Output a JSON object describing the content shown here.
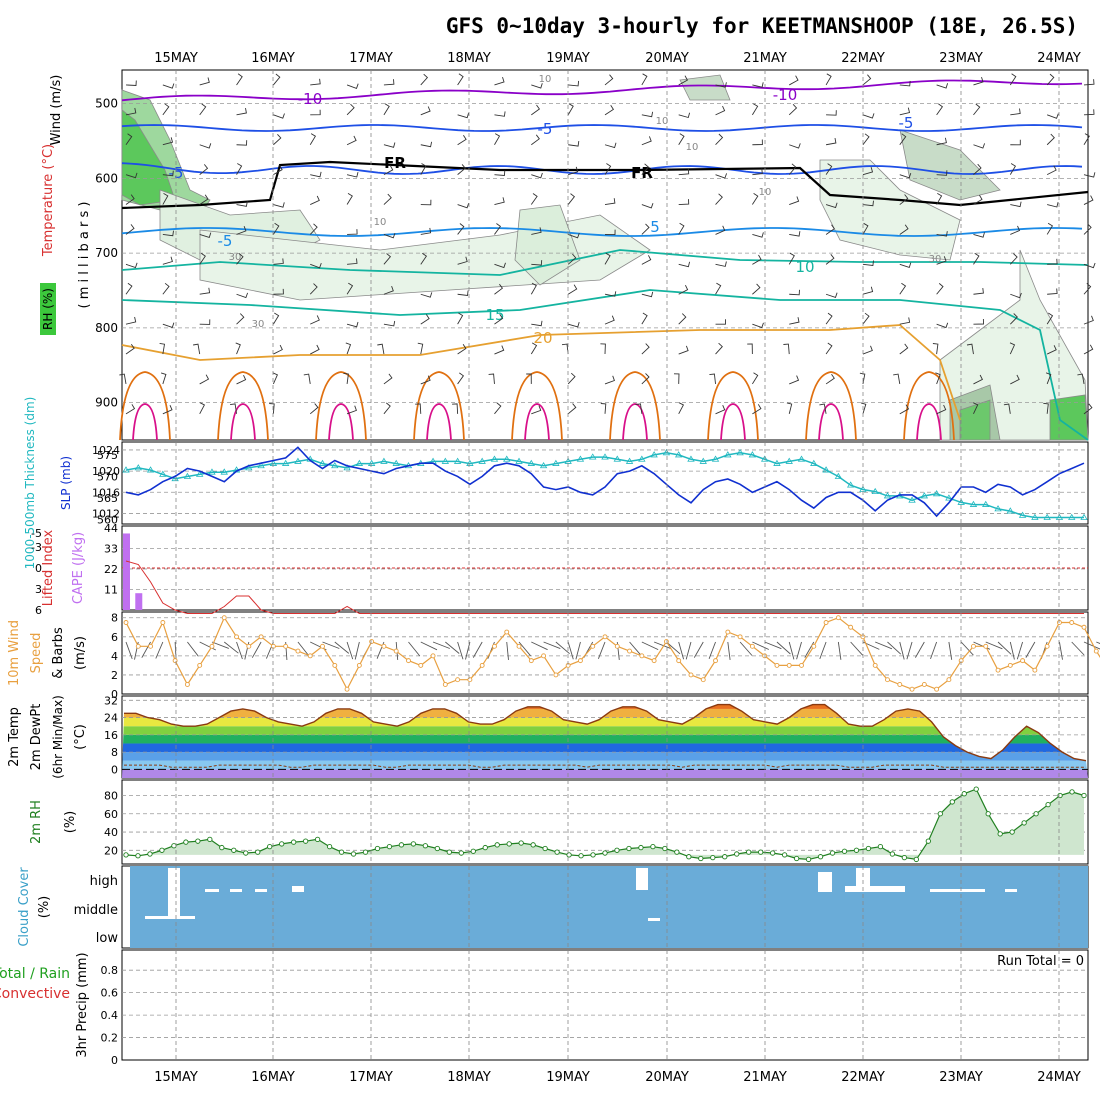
{
  "title": "GFS 0~10day 3-hourly for KEETMANSHOOP (18E, 26.5S)",
  "dates": [
    "15MAY",
    "16MAY",
    "17MAY",
    "18MAY",
    "19MAY",
    "20MAY",
    "21MAY",
    "22MAY",
    "23MAY",
    "24MAY"
  ],
  "colors": {
    "purple": "#8a00c8",
    "blue": "#1e4fe6",
    "midblue": "#1a8ae6",
    "teal": "#14b4a0",
    "orange": "#e6a030",
    "dorange": "#e07010",
    "magenta": "#d8108a",
    "black": "#000000",
    "slp": "#1030d0",
    "thick": "#20b8c0",
    "li": "#d83030",
    "cape": "#c070f0",
    "wind": "#e8a040",
    "rh2": "#208020",
    "cloud": "#6aacd8",
    "precipcolor": "#20a020"
  },
  "panels": {
    "upper": {
      "ylabel_wind": "Wind (m/s)",
      "ylabel_temp": "Temperature (°C)",
      "ylabel_mb": "( m i l l i b a r s )",
      "ylabel_rh": "RH (%)",
      "yticks": [
        "500",
        "600",
        "700",
        "800",
        "900"
      ],
      "contour_labels": [
        {
          "t": "-10",
          "c": "purple"
        },
        {
          "t": "-10",
          "c": "purple"
        },
        {
          "t": "-5",
          "c": "blue"
        },
        {
          "t": "-5",
          "c": "blue"
        },
        {
          "t": "-5",
          "c": "blue"
        },
        {
          "t": "FR",
          "c": "black"
        },
        {
          "t": "FR",
          "c": "black"
        },
        {
          "t": "-5",
          "c": "midblue"
        },
        {
          "t": "5",
          "c": "midblue"
        },
        {
          "t": "10",
          "c": "teal"
        },
        {
          "t": "15",
          "c": "teal"
        },
        {
          "t": "20",
          "c": "orange"
        }
      ],
      "rh_labels": [
        "10",
        "10",
        "10",
        "10",
        "30",
        "30",
        "30",
        "10"
      ]
    },
    "slp": {
      "ylabel_thick": "1000-500mb Thickness (dm)",
      "ylabel_slp": "SLP (mb)",
      "left_ticks": [
        "575",
        "570",
        "565",
        "560"
      ],
      "right_ticks": [
        "1024",
        "1020",
        "1016",
        "1012"
      ],
      "slp_values": [
        1016,
        1015.5,
        1016.5,
        1018,
        1019,
        1020.5,
        1020,
        1019,
        1018,
        1020,
        1021,
        1021.5,
        1022,
        1022.5,
        1024.5,
        1022,
        1020.5,
        1022,
        1021,
        1020.5,
        1020,
        1019.5,
        1020.5,
        1021,
        1021.5,
        1021.5,
        1020,
        1019,
        1017.5,
        1019,
        1021,
        1021.5,
        1021,
        1019.5,
        1017,
        1016.5,
        1017,
        1016,
        1015.5,
        1017,
        1019.5,
        1020,
        1021,
        1019.5,
        1017.5,
        1015.5,
        1014,
        1016.5,
        1018,
        1018.5,
        1017.5,
        1016,
        1017,
        1018,
        1016.5,
        1014.5,
        1013,
        1015,
        1016,
        1016,
        1014.5,
        1012.5,
        1014.5,
        1015.5,
        1015.5,
        1014,
        1011.5,
        1014,
        1017,
        1017,
        1016,
        1017.5,
        1017,
        1015.5,
        1016.5,
        1018,
        1019.5,
        1020.5,
        1021.5
      ],
      "thick_values": [
        571.5,
        572,
        571.5,
        570.5,
        569.5,
        570,
        570.5,
        571,
        571,
        571.5,
        572,
        572.5,
        573,
        573,
        573.5,
        574,
        573,
        572.5,
        572,
        573,
        573,
        573.5,
        573,
        572.5,
        573,
        573.5,
        573.5,
        573.5,
        573,
        573.5,
        574,
        574,
        573.5,
        573,
        572.5,
        573,
        573.5,
        574,
        574.5,
        574.5,
        574,
        573.5,
        574,
        575,
        575.5,
        575,
        574,
        573.5,
        574,
        575,
        575.5,
        575,
        574,
        573,
        573.5,
        574,
        573,
        571.5,
        570,
        568,
        567,
        566.5,
        565.5,
        565.5,
        564.5,
        565.5,
        566,
        565,
        564,
        563.5,
        563.5,
        562.5,
        562,
        561,
        560.5,
        560.5,
        560.5,
        560.5,
        560.5
      ]
    },
    "cape": {
      "ylabel_li": "Lifted Index",
      "ylabel_cape": "CAPE (J/kg)",
      "left_ticks": [
        "-5",
        "-3",
        "0",
        "3",
        "6"
      ],
      "right_ticks": [
        "44",
        "33",
        "22",
        "11"
      ],
      "cape_bars": [
        41,
        9,
        0,
        0,
        0,
        0,
        0,
        0,
        0,
        0,
        0,
        0,
        0,
        0,
        0,
        0,
        0,
        0,
        0,
        0,
        0,
        0,
        0,
        0,
        0,
        0,
        0,
        0,
        0,
        0,
        0,
        0,
        0,
        0,
        0,
        0,
        0,
        0,
        0,
        0,
        0,
        0,
        0,
        0,
        0,
        0,
        0,
        0,
        0,
        0,
        0,
        0,
        0,
        0,
        0,
        0,
        0,
        0,
        0,
        0,
        0,
        0,
        0,
        0,
        0,
        0,
        0,
        0,
        0,
        0,
        0,
        0,
        0,
        0,
        0,
        0,
        0,
        0,
        0
      ],
      "li_values": [
        -1,
        -0.5,
        2,
        5,
        6,
        6.5,
        6.5,
        6.5,
        5.5,
        4,
        4,
        6,
        6.5,
        6.5,
        6.5,
        6.5,
        6.5,
        6.5,
        5.5,
        6.5,
        6.5,
        6.5,
        6.5,
        6.5,
        6.5,
        6.5,
        6.5,
        6.5,
        6.5,
        6.5,
        6.5,
        6.5,
        6.5,
        6.5,
        6.5,
        6.5,
        6.5,
        6.5,
        6.5,
        6.5,
        6.5,
        6.5,
        6.5,
        6.5,
        6.5,
        6.5,
        6.5,
        6.5,
        6.5,
        6.5,
        6.5,
        6.5,
        6.5,
        6.5,
        6.5,
        6.5,
        6.5,
        6.5,
        6.5,
        6.5,
        6.5,
        6.5,
        6.5,
        6.5,
        6.5,
        6.5,
        6.5,
        6.5,
        6.5,
        6.5,
        6.5,
        6.5,
        6.5,
        6.5,
        6.5,
        6.5,
        6.5,
        6.5,
        6.5
      ]
    },
    "wind": {
      "ylabel1": "10m Wind",
      "ylabel2": "Speed",
      "ylabel3": "& Barbs",
      "ylabel4": "(m/s)",
      "ticks": [
        "8",
        "6",
        "4",
        "2",
        "0"
      ],
      "values": [
        7.5,
        5,
        5,
        7.5,
        3.5,
        1,
        3,
        5,
        8,
        6,
        5,
        6,
        5,
        5,
        4.5,
        4,
        5,
        3,
        0.5,
        3,
        5.5,
        5,
        4.5,
        3.5,
        3,
        4,
        1,
        1.5,
        1.5,
        3,
        5,
        6.5,
        5,
        3.5,
        4,
        2,
        3,
        3.5,
        5,
        6,
        5,
        4.5,
        4,
        3.5,
        5.5,
        3.5,
        2,
        1.5,
        3.5,
        6.5,
        6,
        5,
        4,
        3,
        3,
        3,
        5,
        7.5,
        8,
        7,
        6,
        3,
        1.5,
        1,
        0.5,
        1,
        0.5,
        1.5,
        3.5,
        5,
        5,
        2.5,
        3,
        3.5,
        2.5,
        5,
        7.5,
        7.5,
        7,
        4.5,
        2.5,
        1.5,
        1
      ]
    },
    "temp2m": {
      "ylabel1": "2m Temp",
      "ylabel2": "2m DewPt",
      "ylabel3": "(6hr Min/Max)",
      "ylabel4": "(°C)",
      "ticks": [
        "32",
        "24",
        "16",
        "8",
        "0"
      ],
      "temp_values": [
        26,
        26,
        24,
        23,
        21,
        20,
        20,
        21,
        24,
        27,
        28,
        27,
        24,
        22,
        21,
        20,
        22,
        26,
        28,
        28,
        26,
        22,
        21,
        20,
        22,
        26,
        28,
        28,
        26,
        22,
        21,
        21,
        23,
        27,
        29,
        29,
        27,
        23,
        22,
        21,
        23,
        27,
        29,
        29,
        27,
        23,
        22,
        21,
        24,
        28,
        30,
        30,
        27,
        23,
        22,
        21,
        24,
        28,
        30,
        30,
        26,
        21,
        20,
        20,
        23,
        27,
        28,
        27,
        22,
        15,
        11,
        8,
        6,
        5,
        9,
        15,
        20,
        17,
        12,
        8,
        5,
        4
      ]
    },
    "rh2m": {
      "ylabel1": "2m RH",
      "ylabel2": "(%)",
      "ticks": [
        "80",
        "60",
        "40",
        "20"
      ],
      "values": [
        15,
        14,
        16,
        20,
        25,
        29,
        30,
        32,
        23,
        20,
        17,
        18,
        24,
        27,
        29,
        30,
        32,
        24,
        18,
        16,
        18,
        22,
        24,
        26,
        27,
        25,
        22,
        18,
        17,
        19,
        23,
        26,
        27,
        28,
        26,
        22,
        18,
        15,
        14,
        15,
        17,
        20,
        22,
        23,
        24,
        22,
        18,
        13,
        11,
        12,
        13,
        16,
        18,
        18,
        17,
        15,
        11,
        10,
        13,
        17,
        19,
        20,
        22,
        24,
        16,
        12,
        10,
        30,
        60,
        73,
        82,
        87,
        60,
        38,
        40,
        50,
        60,
        70,
        80,
        84,
        80
      ]
    },
    "cloud": {
      "ylabel1": "Cloud Cover",
      "ylabel2": "(%)",
      "ticks": [
        "high",
        "middle",
        "low"
      ]
    },
    "precip": {
      "ylabel1": "Total / Rain",
      "ylabel2": "Convective",
      "ylabel3": "3hr Precip (mm)",
      "ticks": [
        "0.8",
        "0.6",
        "0.4",
        "0.2",
        "0"
      ],
      "run_total": "Run Total = 0"
    }
  }
}
